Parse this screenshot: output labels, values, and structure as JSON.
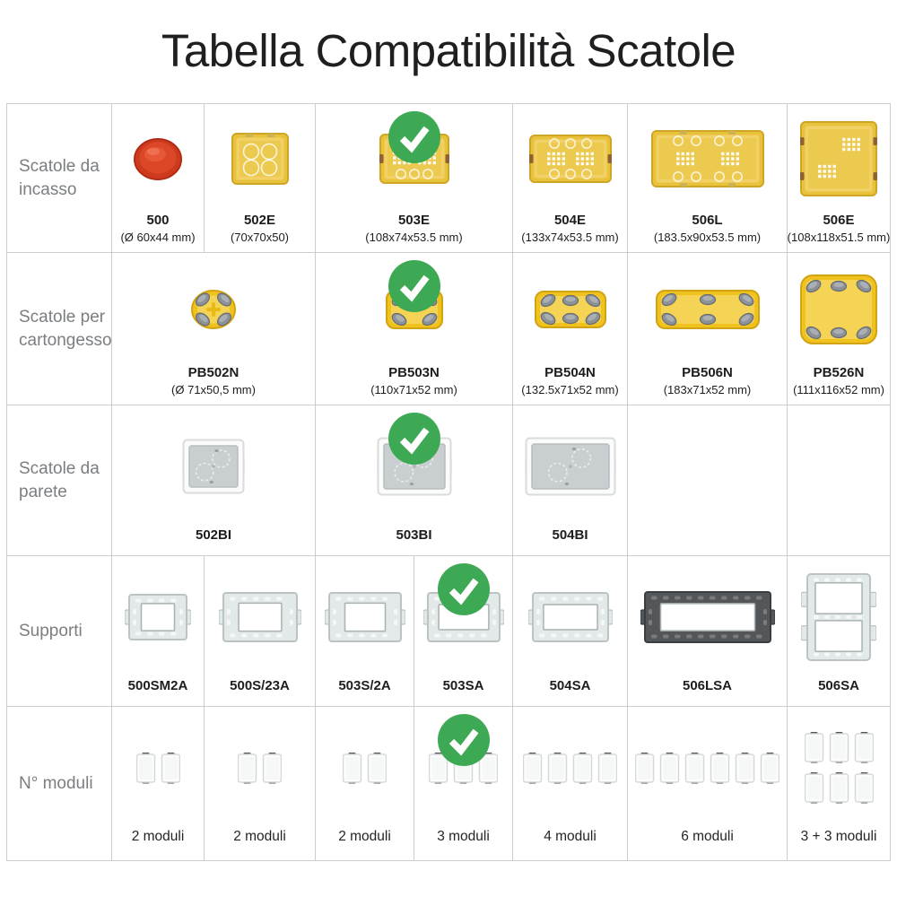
{
  "title": "Tabella Compatibilità Scatole",
  "compatible_marker": {
    "symbol": "checkmark",
    "color": "#3ea954"
  },
  "colors": {
    "check_green": "#3ea954",
    "box_yellow": "#eac23a",
    "border_gray": "#cbcdce",
    "label_gray": "#7b7e81"
  },
  "table": {
    "rows": [
      {
        "label": "Scatole da incasso",
        "cells": [
          {
            "code": "500",
            "dims": "(Ø 60x44 mm)",
            "visual": "round-red-flush-box"
          },
          {
            "code": "502E",
            "dims": "(70x70x50)",
            "visual": "yellow-flush-box"
          },
          {
            "code": "503E",
            "dims": "(108x74x53.5 mm)",
            "visual": "yellow-flush-box",
            "checked": true
          },
          {
            "code": "504E",
            "dims": "(133x74x53.5 mm)",
            "visual": "yellow-flush-box"
          },
          {
            "code": "506L",
            "dims": "(183.5x90x53.5 mm)",
            "visual": "yellow-flush-box"
          },
          {
            "code": "506E",
            "dims": "(108x118x51.5 mm)",
            "visual": "yellow-flush-box"
          }
        ]
      },
      {
        "label": "Scatole per cartongesso",
        "cells": [
          {
            "code": "PB502N",
            "dims": "(Ø 71x50,5 mm)",
            "visual": "round-drywall-box"
          },
          {
            "code": "PB503N",
            "dims": "(110x71x52 mm)",
            "visual": "drywall-box",
            "checked": true
          },
          {
            "code": "PB504N",
            "dims": "(132.5x71x52 mm)",
            "visual": "drywall-box"
          },
          {
            "code": "PB506N",
            "dims": "(183x71x52 mm)",
            "visual": "drywall-box"
          },
          {
            "code": "PB526N",
            "dims": "(111x116x52 mm)",
            "visual": "drywall-box"
          }
        ]
      },
      {
        "label": "Scatole da parete",
        "cells": [
          {
            "code": "502BI",
            "visual": "white-wall-box"
          },
          {
            "code": "503BI",
            "visual": "white-wall-box",
            "checked": true
          },
          {
            "code": "504BI",
            "visual": "white-wall-box"
          },
          {
            "empty": true
          },
          {
            "empty": true
          }
        ]
      },
      {
        "label": "Supporti",
        "cells": [
          {
            "code": "500SM2A",
            "visual": "support-frame"
          },
          {
            "code": "500S/23A",
            "visual": "support-frame"
          },
          {
            "code": "503S/2A",
            "visual": "support-frame"
          },
          {
            "code": "503SA",
            "visual": "support-frame",
            "checked": true
          },
          {
            "code": "504SA",
            "visual": "support-frame"
          },
          {
            "code": "506LSA",
            "visual": "support-frame-dark"
          },
          {
            "code": "506SA",
            "visual": "support-frame-double"
          }
        ]
      },
      {
        "label": "N° moduli",
        "cells": [
          {
            "caption": "2 moduli",
            "visual": "modules-2"
          },
          {
            "caption": "2 moduli",
            "visual": "modules-2"
          },
          {
            "caption": "2 moduli",
            "visual": "modules-2"
          },
          {
            "caption": "3 moduli",
            "visual": "modules-3",
            "checked": true
          },
          {
            "caption": "4 moduli",
            "visual": "modules-4"
          },
          {
            "caption": "6 moduli",
            "visual": "modules-6"
          },
          {
            "caption": "3 + 3 moduli",
            "visual": "modules-3-plus-3"
          }
        ]
      }
    ]
  }
}
